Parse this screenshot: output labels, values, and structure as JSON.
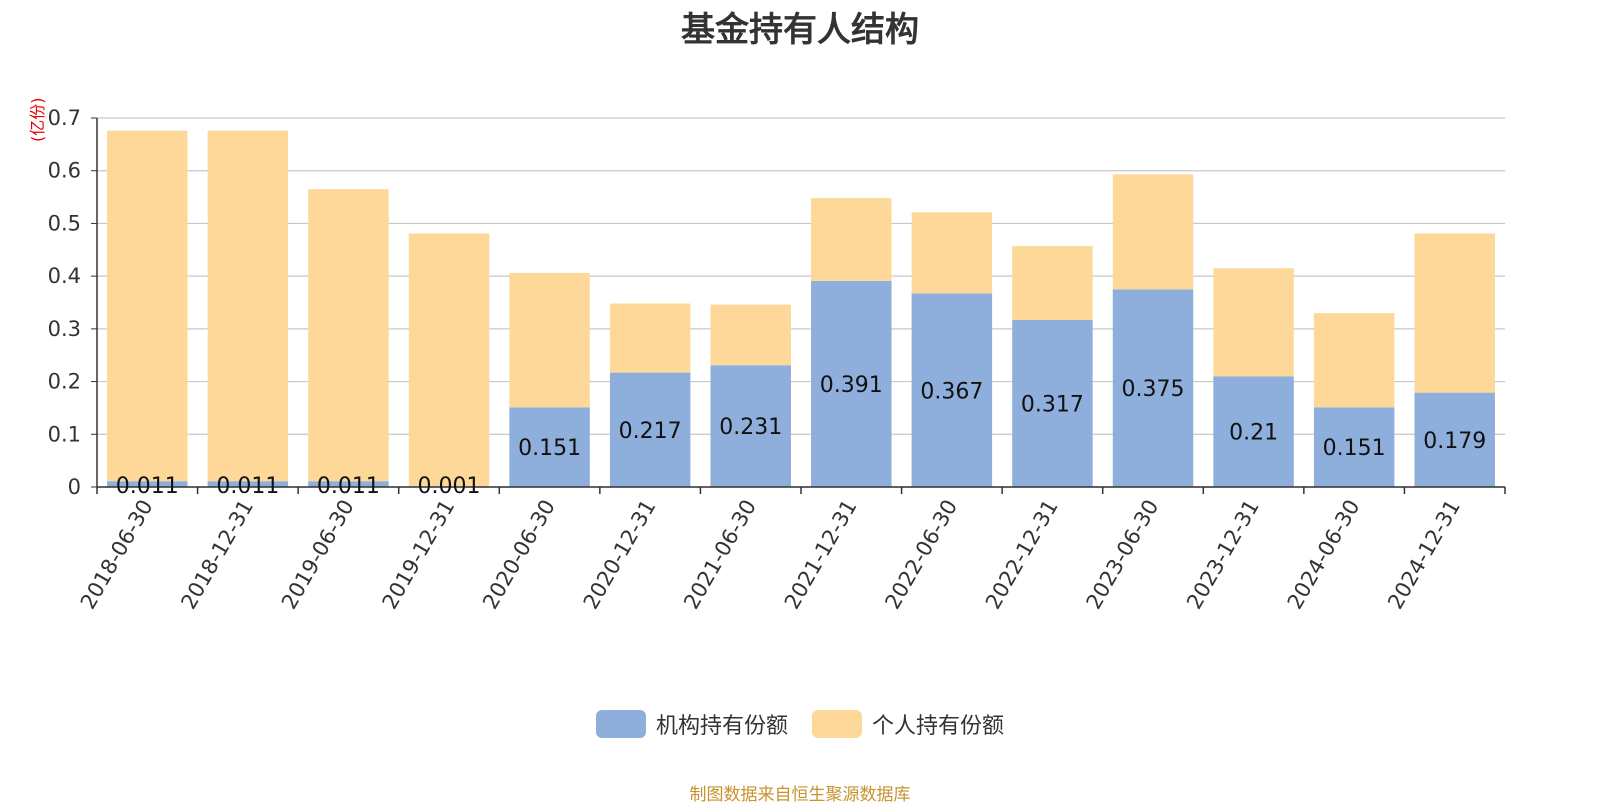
{
  "chart_data": {
    "type": "bar",
    "stacked": true,
    "title": "基金持有人结构",
    "ylabel": "(亿份)",
    "ylim": [
      0,
      0.7
    ],
    "yticks": [
      0,
      0.1,
      0.2,
      0.3,
      0.4,
      0.5,
      0.6,
      0.7
    ],
    "grid": true,
    "legend_position": "bottom-center",
    "categories": [
      "2018-06-30",
      "2018-12-31",
      "2019-06-30",
      "2019-12-31",
      "2020-06-30",
      "2020-12-31",
      "2021-06-30",
      "2021-12-31",
      "2022-06-30",
      "2022-12-31",
      "2023-06-30",
      "2023-12-31",
      "2024-06-30",
      "2024-12-31"
    ],
    "series": [
      {
        "name": "机构持有份额",
        "color": "#8eaedb",
        "values": [
          0.011,
          0.011,
          0.011,
          0.001,
          0.151,
          0.217,
          0.231,
          0.391,
          0.367,
          0.317,
          0.375,
          0.21,
          0.151,
          0.179
        ]
      },
      {
        "name": "个人持有份额",
        "color": "#fed899",
        "values": [
          0.665,
          0.665,
          0.554,
          0.48,
          0.255,
          0.131,
          0.115,
          0.157,
          0.154,
          0.14,
          0.218,
          0.205,
          0.179,
          0.302
        ]
      }
    ],
    "data_labels": [
      "0.011",
      "0.011",
      "0.011",
      "0.001",
      "0.151",
      "0.217",
      "0.231",
      "0.391",
      "0.367",
      "0.317",
      "0.375",
      "0.21",
      "0.151",
      "0.179"
    ]
  },
  "source_note": "制图数据来自恒生聚源数据库"
}
